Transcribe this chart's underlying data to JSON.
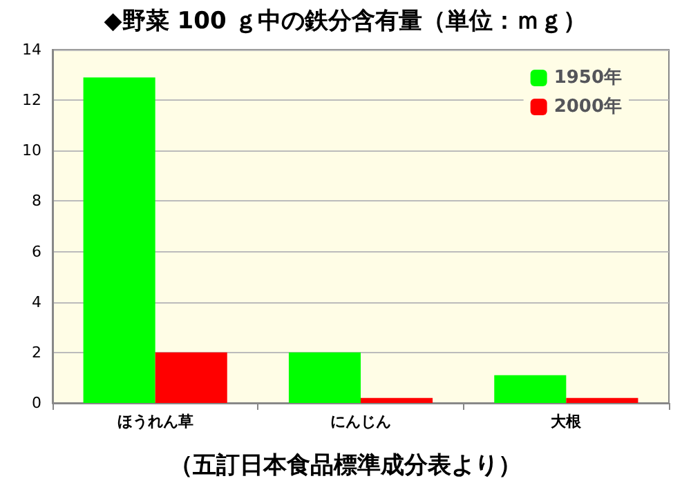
{
  "chart_data": {
    "type": "bar",
    "title": "◆野菜 100 ｇ中の鉄分含有量（単位：ｍｇ）",
    "categories": [
      "ほうれん草",
      "にんじん",
      "大根"
    ],
    "series": [
      {
        "name": "1950年",
        "color": "#00ff00",
        "values": [
          12.9,
          2.0,
          1.1
        ]
      },
      {
        "name": "2000年",
        "color": "#ff0000",
        "values": [
          2.0,
          0.2,
          0.2
        ]
      }
    ],
    "ylim": [
      0,
      14
    ],
    "yticks": [
      0,
      2,
      4,
      6,
      8,
      10,
      12,
      14
    ],
    "grid": "y",
    "legend": "top right",
    "annotations": [
      "（五訂日本食品標準成分表より）"
    ]
  }
}
